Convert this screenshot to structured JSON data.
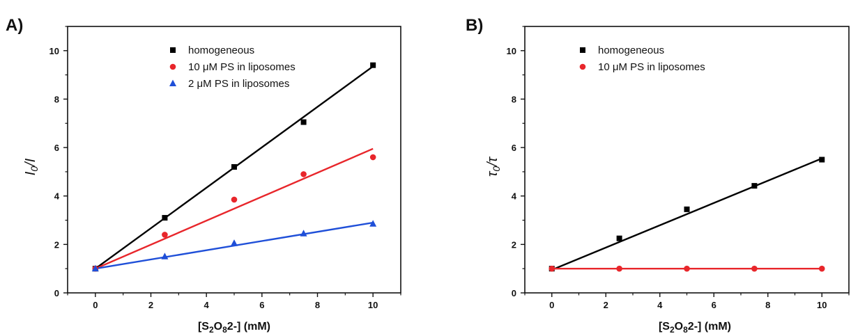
{
  "chart_data": [
    {
      "panel_label": "A)",
      "type": "scatter",
      "x_axis": {
        "label_prefix": "[S",
        "label_sub1": "2",
        "label_mid": "O",
        "label_sub2": "8",
        "label_suffix": "2-] (mM)",
        "range": [
          -1,
          11
        ],
        "ticks": [
          "0",
          "2",
          "4",
          "6",
          "8",
          "10"
        ]
      },
      "y_axis": {
        "label_main": "I",
        "label_sub": "0",
        "label_suffix": "/I",
        "range": [
          0,
          11
        ],
        "ticks": [
          "0",
          "2",
          "4",
          "6",
          "8",
          "10"
        ]
      },
      "legend_position": "top-center",
      "series": [
        {
          "name": "homogeneous",
          "color": "#000000",
          "marker": "square",
          "x": [
            0,
            2.5,
            5,
            7.5,
            10
          ],
          "y": [
            1.0,
            3.1,
            5.2,
            7.05,
            9.4
          ],
          "fit": {
            "x": [
              0,
              10
            ],
            "y": [
              1.0,
              9.35
            ]
          }
        },
        {
          "name": "10 μM PS in liposomes",
          "color": "#e8262b",
          "marker": "circle",
          "x": [
            0,
            2.5,
            5,
            7.5,
            10
          ],
          "y": [
            1.0,
            2.4,
            3.85,
            4.9,
            5.6
          ],
          "fit": {
            "x": [
              0,
              10
            ],
            "y": [
              1.0,
              5.95
            ]
          }
        },
        {
          "name": " 2 μM PS in liposomes",
          "color": "#1f4fd8",
          "marker": "triangle",
          "x": [
            0,
            2.5,
            5,
            7.5,
            10
          ],
          "y": [
            1.0,
            1.5,
            2.05,
            2.45,
            2.85
          ],
          "fit": {
            "x": [
              0,
              10
            ],
            "y": [
              1.0,
              2.9
            ]
          }
        }
      ]
    },
    {
      "panel_label": "B)",
      "type": "scatter",
      "x_axis": {
        "label_prefix": "[S",
        "label_sub1": "2",
        "label_mid": "O",
        "label_sub2": "8",
        "label_suffix": "2-] (mM)",
        "range": [
          -1,
          11
        ],
        "ticks": [
          "0",
          "2",
          "4",
          "6",
          "8",
          "10"
        ]
      },
      "y_axis": {
        "label_main": "τ",
        "label_sub": "0",
        "label_suffix": "/τ",
        "range": [
          0,
          11
        ],
        "ticks": [
          "0",
          "2",
          "4",
          "6",
          "8",
          "10"
        ]
      },
      "legend_position": "top-center",
      "series": [
        {
          "name": "homogeneous",
          "color": "#000000",
          "marker": "square",
          "x": [
            0,
            2.5,
            5,
            7.5,
            10
          ],
          "y": [
            1.0,
            2.25,
            3.45,
            4.42,
            5.5
          ],
          "fit": {
            "x": [
              0,
              10
            ],
            "y": [
              0.95,
              5.55
            ]
          }
        },
        {
          "name": "10 μM PS in liposomes",
          "color": "#e8262b",
          "marker": "circle",
          "x": [
            0,
            2.5,
            5,
            7.5,
            10
          ],
          "y": [
            1.0,
            1.0,
            1.0,
            1.0,
            1.0
          ],
          "fit": {
            "x": [
              0,
              10
            ],
            "y": [
              1.0,
              1.0
            ]
          }
        }
      ]
    }
  ]
}
